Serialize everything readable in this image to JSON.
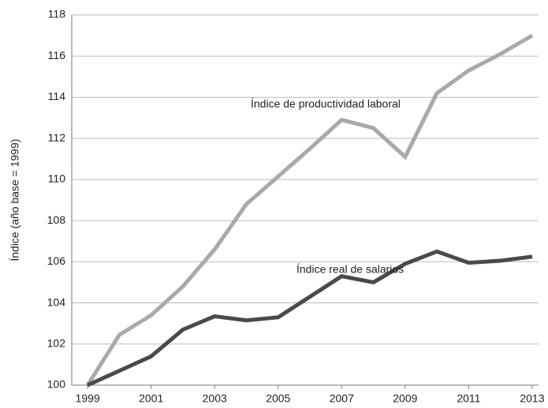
{
  "chart_data": {
    "type": "line",
    "y_label": "Índice (año base = 1999)",
    "annotations": [
      "Índice de productividad laboral",
      "Índice real de salarios"
    ],
    "x": [
      1999,
      2000,
      2001,
      2002,
      2003,
      2004,
      2005,
      2006,
      2007,
      2008,
      2009,
      2010,
      2011,
      2012,
      2013
    ],
    "series": [
      {
        "name": "Índice de productividad laboral",
        "color": "#a9a9a9",
        "values": [
          100,
          102.45,
          103.4,
          104.8,
          106.6,
          108.8,
          110.15,
          111.5,
          112.9,
          112.5,
          111.1,
          114.2,
          115.3,
          116.1,
          117.0
        ]
      },
      {
        "name": "Índice real de salarios",
        "color": "#4a4a4a",
        "values": [
          100,
          100.7,
          101.4,
          102.7,
          103.35,
          103.15,
          103.3,
          104.3,
          105.3,
          105.0,
          105.9,
          106.5,
          105.95,
          106.05,
          106.25
        ]
      }
    ],
    "xlim": [
      1998.5,
      2013.2
    ],
    "xticks": [
      1999,
      2001,
      2003,
      2005,
      2007,
      2009,
      2011,
      2013
    ],
    "ylim": [
      100,
      118
    ],
    "yticks": [
      100,
      102,
      104,
      106,
      108,
      110,
      112,
      114,
      116,
      118
    ],
    "grid": true
  }
}
